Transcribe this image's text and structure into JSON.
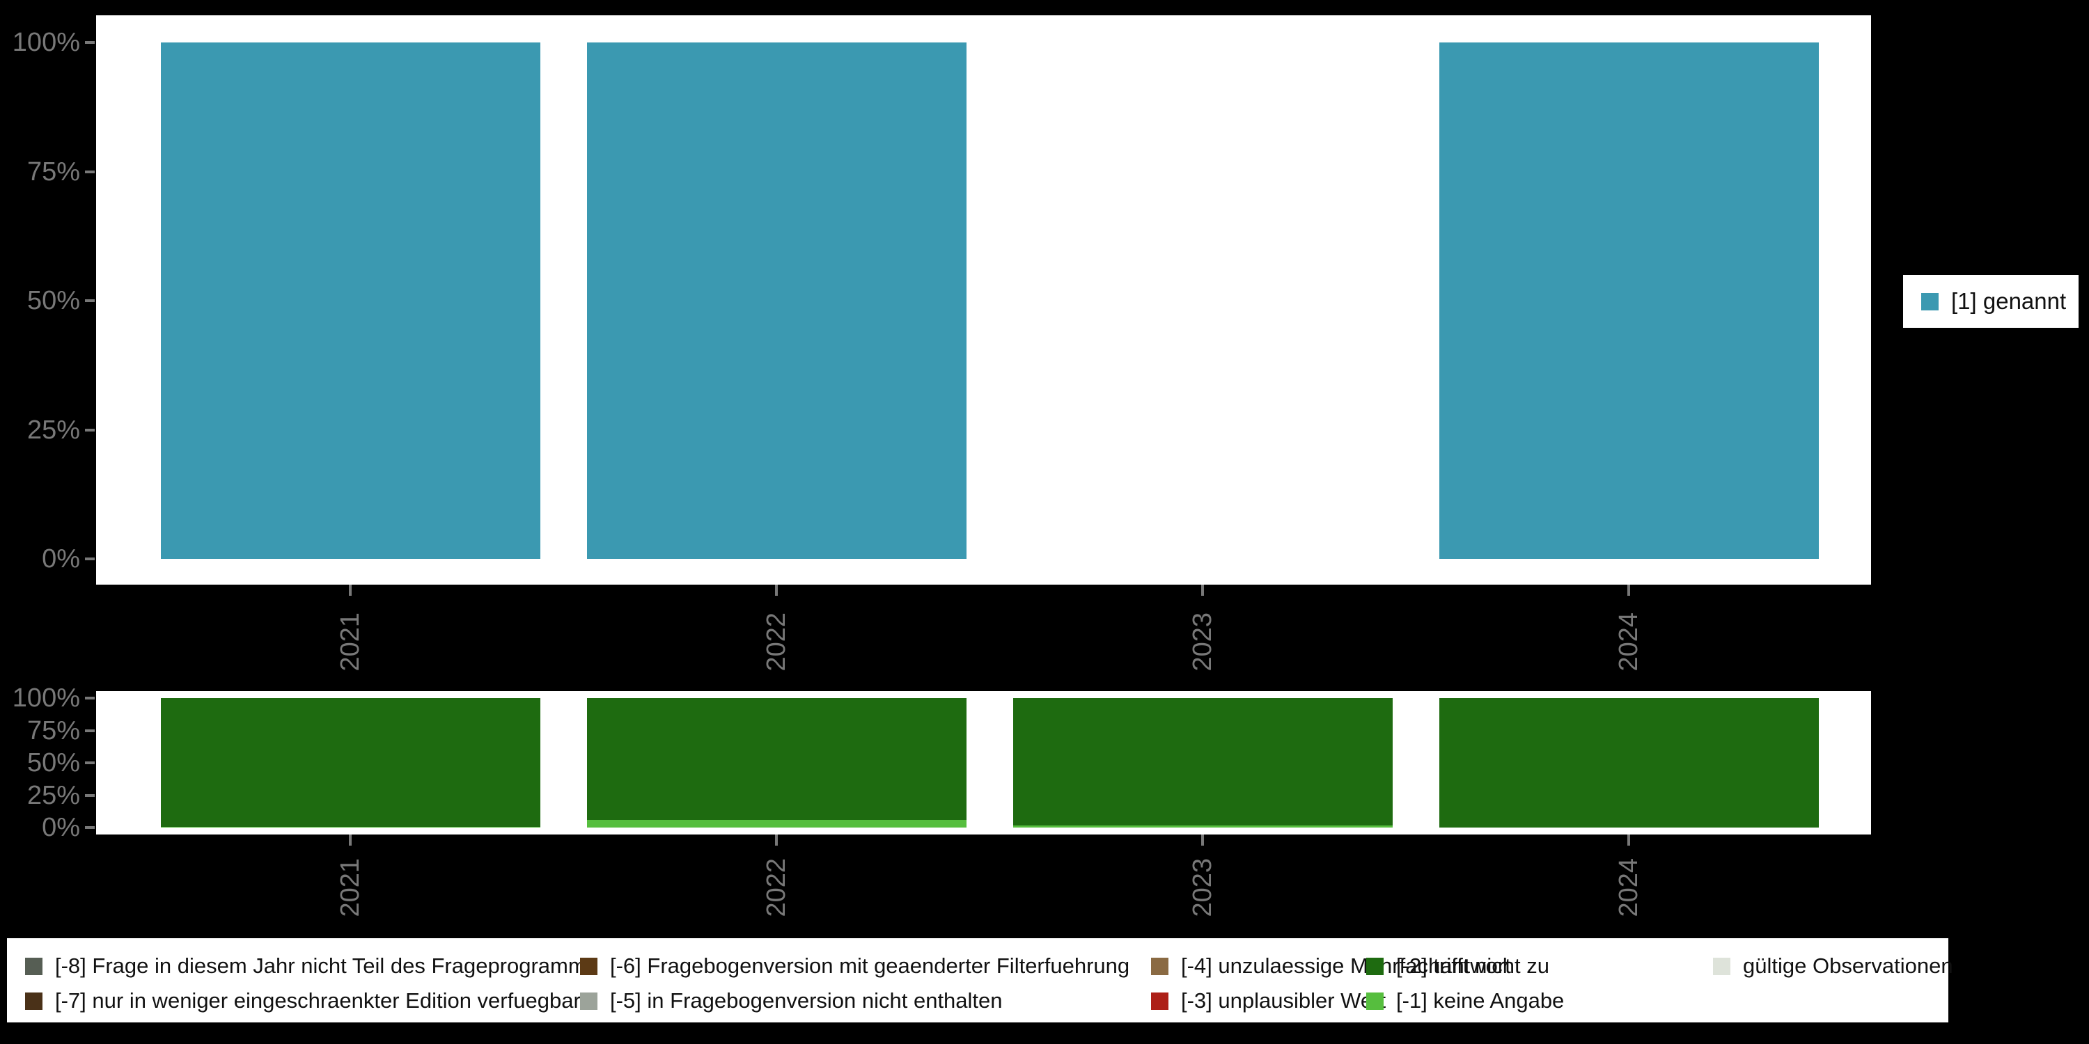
{
  "page": {
    "background_color": "#000000",
    "panel_color": "#ffffff",
    "axis_text_color": "#787878"
  },
  "chart_data": [
    {
      "type": "bar",
      "stacked": true,
      "title": "",
      "xlabel": "",
      "ylabel": "",
      "categories": [
        "2021",
        "2022",
        "2023",
        "2024"
      ],
      "y_ticks": [
        "100%",
        "75%",
        "50%",
        "25%",
        "0%"
      ],
      "ylim": [
        0,
        100
      ],
      "grid": false,
      "legend_position": "right",
      "series": [
        {
          "name": "[1] genannt",
          "color": "#3B99B1",
          "values": [
            100,
            100,
            null,
            100
          ]
        }
      ]
    },
    {
      "type": "bar",
      "stacked": true,
      "title": "",
      "xlabel": "",
      "ylabel": "",
      "categories": [
        "2021",
        "2022",
        "2023",
        "2024"
      ],
      "y_ticks": [
        "100%",
        "75%",
        "50%",
        "25%",
        "0%"
      ],
      "ylim": [
        0,
        100
      ],
      "grid": false,
      "legend_position": "bottom",
      "series": [
        {
          "name": "[-2] trifft nicht zu",
          "color": "#1E6B10",
          "values": [
            99.5,
            94,
            98.5,
            100
          ]
        },
        {
          "name": "[-1] keine Angabe",
          "color": "#56BE3E",
          "values": [
            0.5,
            6,
            1.5,
            0
          ]
        }
      ]
    }
  ],
  "missing_legend": {
    "items": [
      {
        "label": "[-8] Frage in diesem Jahr nicht Teil des Frageprogramms",
        "color": "#565E54",
        "row": 0,
        "col": 0
      },
      {
        "label": "[-7] nur in weniger eingeschraenkter Edition verfuegbar",
        "color": "#4A3118",
        "row": 1,
        "col": 0
      },
      {
        "label": "[-6] Fragebogenversion mit geaenderter Filterfuehrung",
        "color": "#5C3A15",
        "row": 0,
        "col": 1
      },
      {
        "label": "[-5] in Fragebogenversion nicht enthalten",
        "color": "#9CA39A",
        "row": 1,
        "col": 1
      },
      {
        "label": "[-4] unzulaessige Mehrfachantwort",
        "color": "#8A6A43",
        "row": 0,
        "col": 2
      },
      {
        "label": "[-3] unplausibler Wert",
        "color": "#AD1F17",
        "row": 1,
        "col": 2
      },
      {
        "label": "[-2] trifft nicht zu",
        "color": "#1E6B10",
        "row": 0,
        "col": 3
      },
      {
        "label": "[-1] keine Angabe",
        "color": "#56BE3E",
        "row": 1,
        "col": 3
      },
      {
        "label": "gültige Observationen",
        "color": "#DEE3DA",
        "row": 0,
        "col": 4
      }
    ]
  }
}
